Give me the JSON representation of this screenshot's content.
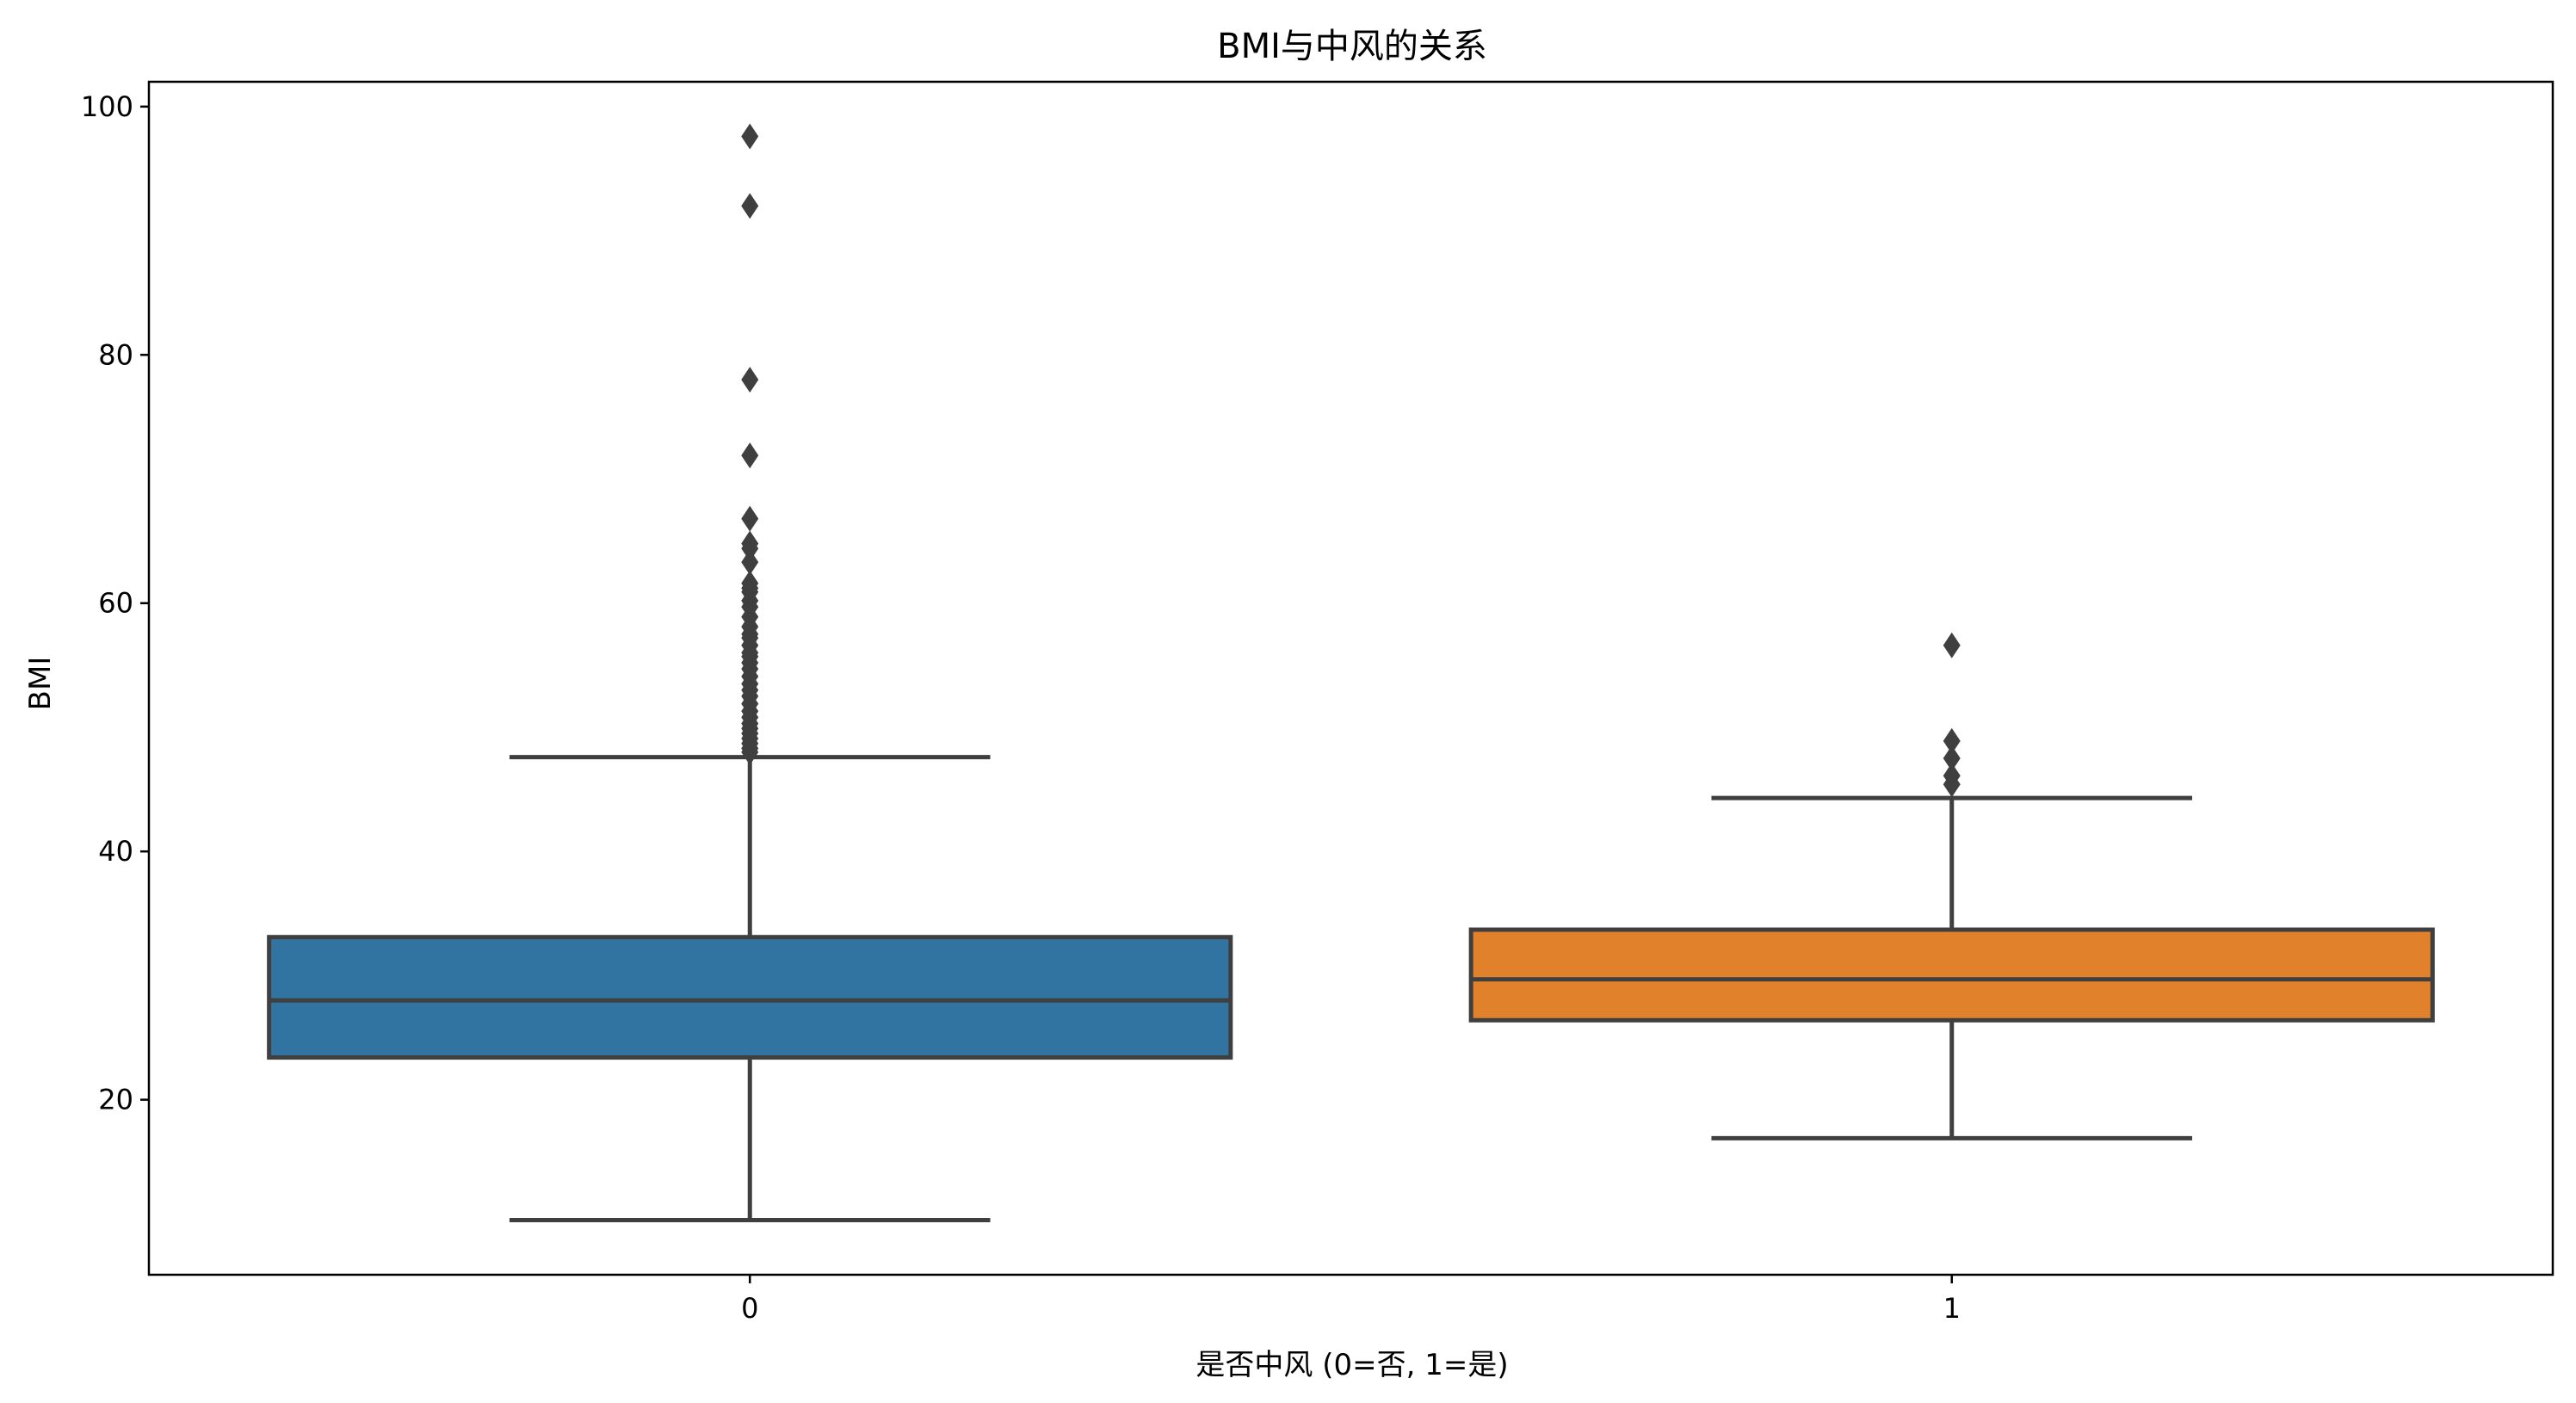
{
  "chart_data": {
    "type": "box",
    "title": "BMI与中风的关系",
    "xlabel": "是否中风 (0=否, 1=是)",
    "ylabel": "BMI",
    "categories": [
      "0",
      "1"
    ],
    "ylim": [
      5.9,
      102
    ],
    "yticks": [
      20,
      40,
      60,
      80,
      100
    ],
    "grid": false,
    "series": [
      {
        "category": "0",
        "color": "#3274a1",
        "whisker_low": 10.3,
        "q1": 23.4,
        "median": 28.0,
        "q3": 33.1,
        "whisker_high": 47.6,
        "outliers": [
          97.6,
          92.0,
          78.0,
          71.9,
          66.8,
          64.8,
          64.4,
          63.3,
          61.6,
          61.2,
          60.9,
          60.2,
          59.7,
          58.9,
          58.1,
          57.5,
          57.2,
          56.6,
          56.0,
          55.7,
          55.2,
          54.7,
          54.1,
          53.5,
          53.0,
          52.5,
          51.9,
          51.3,
          50.8,
          50.3,
          49.9,
          49.5,
          49.1,
          48.7,
          48.3,
          48.0
        ]
      },
      {
        "category": "1",
        "color": "#e1812c",
        "whisker_low": 16.9,
        "q1": 26.4,
        "median": 29.7,
        "q3": 33.7,
        "whisker_high": 44.3,
        "outliers": [
          56.6,
          48.9,
          47.5,
          46.1,
          45.4
        ]
      }
    ]
  }
}
